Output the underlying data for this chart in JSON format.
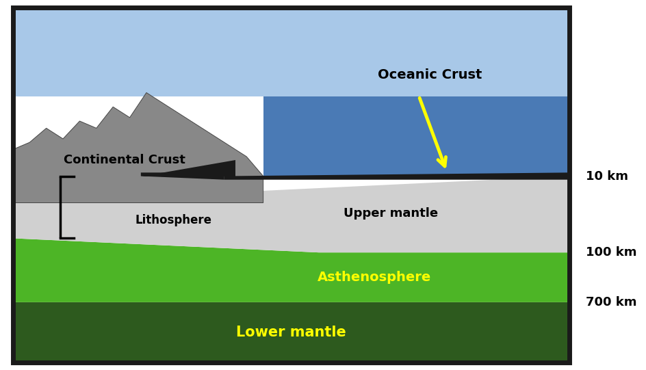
{
  "fig_width": 9.45,
  "fig_height": 5.41,
  "bg_color": "#ffffff",
  "box_color": "#1a1a1a",
  "sky_color": "#a8c8e8",
  "ocean_color": "#4a7ab5",
  "continental_crust_color": "#888888",
  "oceanic_crust_color": "#1a1a1a",
  "upper_mantle_color": "#d0d0d0",
  "asthenosphere_color": "#4db526",
  "lower_mantle_color": "#2d5a1e",
  "label_continental_crust": "Continental Crust",
  "label_oceanic_crust": "Oceanic Crust",
  "label_upper_mantle": "Upper mantle",
  "label_lithosphere": "Lithosphere",
  "label_asthenosphere": "Asthenosphere",
  "label_lower_mantle": "Lower mantle",
  "label_10km": "10 km",
  "label_100km": "100 km",
  "label_700km": "700 km",
  "yellow_color": "#ffff00",
  "black_color": "#000000"
}
